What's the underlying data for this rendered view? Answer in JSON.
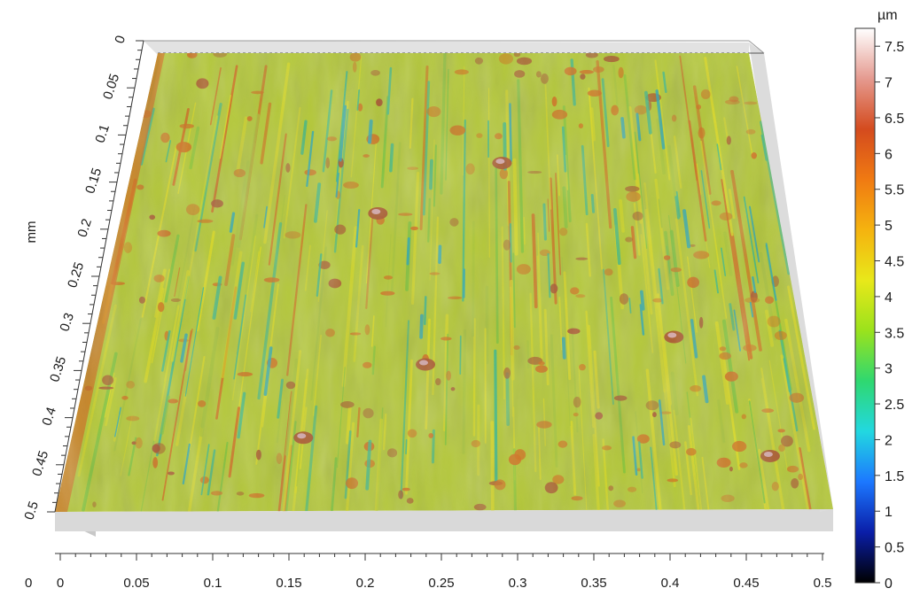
{
  "figure": {
    "unit_label": "µm",
    "y_axis_label": "mm",
    "x_axis_origin_label": "0",
    "x_axis_ticks": [
      "0",
      "0.05",
      "0.1",
      "0.15",
      "0.2",
      "0.25",
      "0.3",
      "0.35",
      "0.4",
      "0.45",
      "0.5"
    ],
    "y_axis_ticks": [
      "0",
      "0.05",
      "0.1",
      "0.15",
      "0.2",
      "0.25",
      "0.3",
      "0.35",
      "0.4",
      "0.45",
      "0.5"
    ],
    "colorbar_ticks": [
      "7.5",
      "7",
      "6.5",
      "6",
      "5.5",
      "5",
      "4.5",
      "4",
      "3.5",
      "3",
      "2.5",
      "2",
      "1.5",
      "1",
      "0.5",
      "0"
    ],
    "colorbar_range": [
      0,
      7.75
    ],
    "colorbar_colors": [
      "#000000",
      "#0a1ea8",
      "#1c78ff",
      "#22d8e0",
      "#2fd870",
      "#9be21c",
      "#e8e81a",
      "#f5b30f",
      "#f07a12",
      "#d44b1e",
      "#e59a8f",
      "#ffffff"
    ],
    "surface_palette": {
      "base": "#a8c43a",
      "yellow": "#d8d824",
      "lime": "#7ec43c",
      "green": "#3fb88a",
      "teal": "#2aa8b8",
      "orange": "#d0701e",
      "rust": "#a8502c",
      "pink": "#d8b0b8"
    }
  }
}
